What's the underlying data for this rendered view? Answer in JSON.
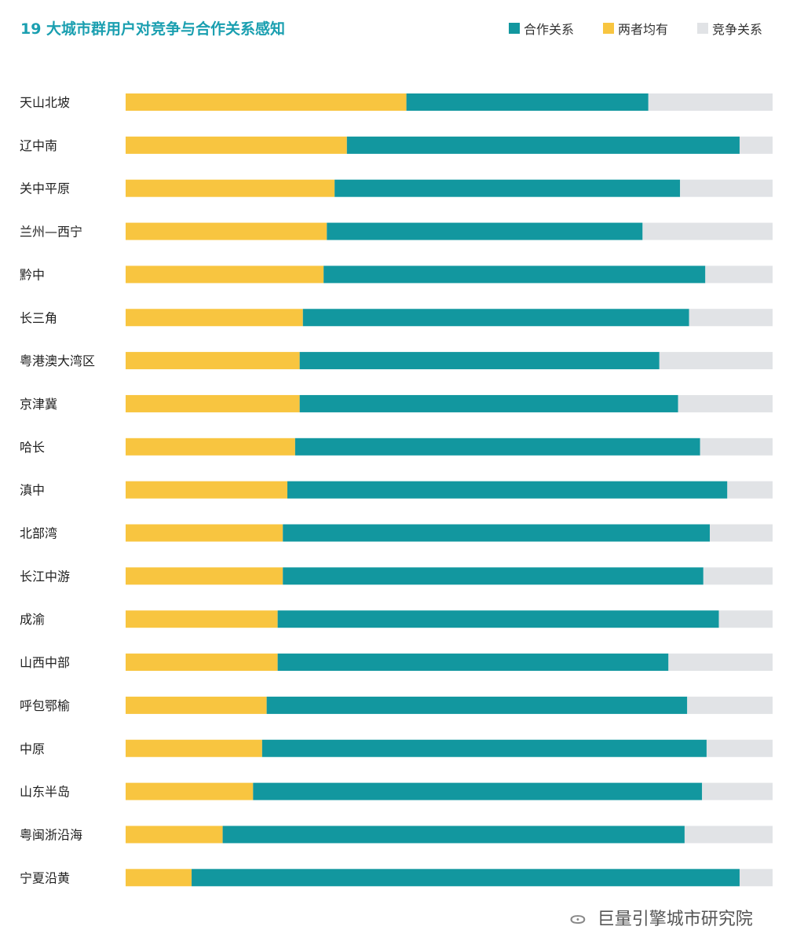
{
  "chart_data": {
    "type": "bar",
    "orientation": "horizontal",
    "stacked": true,
    "percent": true,
    "title": "19 大城市群用户对竞争与合作关系感知",
    "legend": [
      "合作关系",
      "两者均有",
      "竞争关系"
    ],
    "legend_position": "top-right",
    "colors": {
      "合作关系": "#12979f",
      "两者均有": "#f8c540",
      "竞争关系": "#e1e3e6"
    },
    "categories": [
      "天山北坡",
      "辽中南",
      "关中平原",
      "兰州—西宁",
      "黔中",
      "长三角",
      "粤港澳大湾区",
      "京津冀",
      "哈长",
      "滇中",
      "北部湾",
      "长江中游",
      "成渝",
      "山西中部",
      "呼包鄂榆",
      "中原",
      "山东半岛",
      "粤闽浙沿海",
      "宁夏沿黄"
    ],
    "series": [
      {
        "name": "两者均有",
        "values": [
          43.4,
          34.2,
          32.3,
          31.1,
          30.6,
          27.4,
          26.9,
          26.9,
          26.2,
          25.0,
          24.3,
          24.3,
          23.5,
          23.5,
          21.8,
          21.1,
          19.7,
          15.0,
          10.2
        ]
      },
      {
        "name": "合作关系",
        "values": [
          37.4,
          60.7,
          53.4,
          48.8,
          59.0,
          59.7,
          55.6,
          58.5,
          62.6,
          68.0,
          66.0,
          65.0,
          68.2,
          60.4,
          65.0,
          68.7,
          69.4,
          71.4,
          84.7
        ]
      },
      {
        "name": "竞争关系",
        "values": [
          19.2,
          5.1,
          14.3,
          20.1,
          10.4,
          12.9,
          17.5,
          14.6,
          11.2,
          7.0,
          9.7,
          10.7,
          8.3,
          16.1,
          13.2,
          10.2,
          10.9,
          13.6,
          5.1
        ]
      }
    ],
    "xlim": [
      0,
      100
    ],
    "grid": false
  },
  "watermark": "巨量引擎城市研究院"
}
